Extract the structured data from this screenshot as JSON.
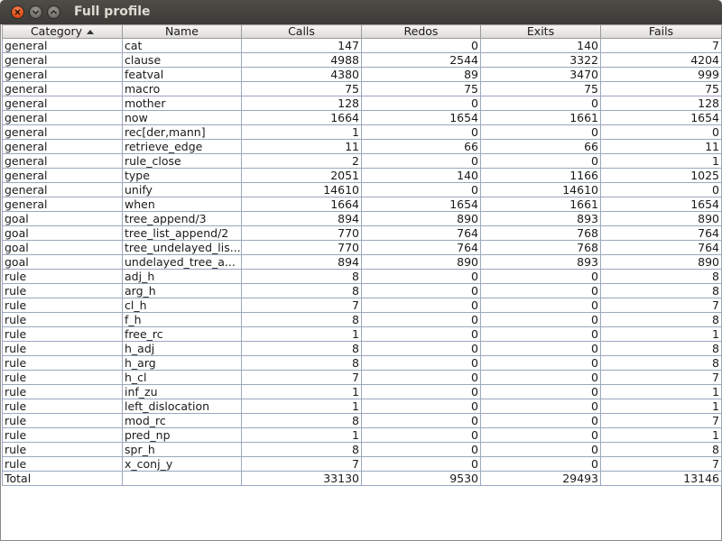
{
  "window": {
    "title": "Full profile"
  },
  "columns": [
    "Category",
    "Name",
    "Calls",
    "Redos",
    "Exits",
    "Fails"
  ],
  "rows": [
    [
      "general",
      "cat",
      "147",
      "0",
      "140",
      "7"
    ],
    [
      "general",
      "clause",
      "4988",
      "2544",
      "3322",
      "4204"
    ],
    [
      "general",
      "featval",
      "4380",
      "89",
      "3470",
      "999"
    ],
    [
      "general",
      "macro",
      "75",
      "75",
      "75",
      "75"
    ],
    [
      "general",
      "mother",
      "128",
      "0",
      "0",
      "128"
    ],
    [
      "general",
      "now",
      "1664",
      "1654",
      "1661",
      "1654"
    ],
    [
      "general",
      "rec[der,mann]",
      "1",
      "0",
      "0",
      "0"
    ],
    [
      "general",
      "retrieve_edge",
      "11",
      "66",
      "66",
      "11"
    ],
    [
      "general",
      "rule_close",
      "2",
      "0",
      "0",
      "1"
    ],
    [
      "general",
      "type",
      "2051",
      "140",
      "1166",
      "1025"
    ],
    [
      "general",
      "unify",
      "14610",
      "0",
      "14610",
      "0"
    ],
    [
      "general",
      "when",
      "1664",
      "1654",
      "1661",
      "1654"
    ],
    [
      "goal",
      "tree_append/3",
      "894",
      "890",
      "893",
      "890"
    ],
    [
      "goal",
      "tree_list_append/2",
      "770",
      "764",
      "768",
      "764"
    ],
    [
      "goal",
      "tree_undelayed_lis...",
      "770",
      "764",
      "768",
      "764"
    ],
    [
      "goal",
      "undelayed_tree_a...",
      "894",
      "890",
      "893",
      "890"
    ],
    [
      "rule",
      "adj_h",
      "8",
      "0",
      "0",
      "8"
    ],
    [
      "rule",
      "arg_h",
      "8",
      "0",
      "0",
      "8"
    ],
    [
      "rule",
      "cl_h",
      "7",
      "0",
      "0",
      "7"
    ],
    [
      "rule",
      "f_h",
      "8",
      "0",
      "0",
      "8"
    ],
    [
      "rule",
      "free_rc",
      "1",
      "0",
      "0",
      "1"
    ],
    [
      "rule",
      "h_adj",
      "8",
      "0",
      "0",
      "8"
    ],
    [
      "rule",
      "h_arg",
      "8",
      "0",
      "0",
      "8"
    ],
    [
      "rule",
      "h_cl",
      "7",
      "0",
      "0",
      "7"
    ],
    [
      "rule",
      "inf_zu",
      "1",
      "0",
      "0",
      "1"
    ],
    [
      "rule",
      "left_dislocation",
      "1",
      "0",
      "0",
      "1"
    ],
    [
      "rule",
      "mod_rc",
      "8",
      "0",
      "0",
      "7"
    ],
    [
      "rule",
      "pred_np",
      "1",
      "0",
      "0",
      "1"
    ],
    [
      "rule",
      "spr_h",
      "8",
      "0",
      "0",
      "8"
    ],
    [
      "rule",
      "x_conj_y",
      "7",
      "0",
      "0",
      "7"
    ],
    [
      "Total",
      "",
      "33130",
      "9530",
      "29493",
      "13146"
    ]
  ]
}
